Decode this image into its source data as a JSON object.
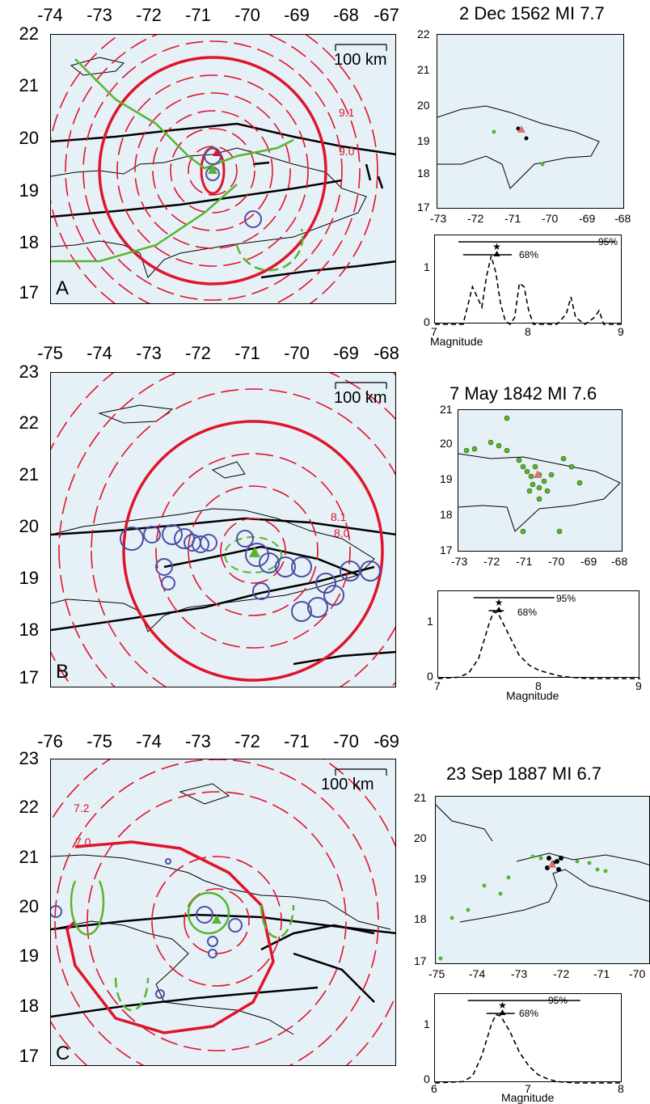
{
  "colors": {
    "sea": "#e6f1f7",
    "contour": "#e0142a",
    "green": "#58b52e",
    "blue": "#4d4fa3",
    "fault": "#000000"
  },
  "panels": [
    {
      "label": "A",
      "title": "2 Dec 1562 MI 7.7",
      "lon_ticks": [
        "-74",
        "-73",
        "-72",
        "-71",
        "-70",
        "-69",
        "-68",
        "-67"
      ],
      "lat_ticks": [
        "22",
        "21",
        "20",
        "19",
        "18",
        "17"
      ],
      "scale": "100 km",
      "contour_labels": [
        "9.1",
        "9.0"
      ],
      "inset": {
        "lon_ticks": [
          "-73",
          "-72",
          "-71",
          "-70",
          "-69",
          "-68"
        ],
        "lat_ticks": [
          "22",
          "21",
          "20",
          "19",
          "18",
          "17"
        ]
      },
      "chart": {
        "x_ticks": [
          "7",
          "8",
          "9"
        ],
        "y_ticks": [
          "1",
          "0"
        ],
        "xlabel": "Magnitude",
        "ci95": "95%",
        "ci68": "68%"
      }
    },
    {
      "label": "B",
      "title": "7 May 1842 MI 7.6",
      "lon_ticks": [
        "-75",
        "-74",
        "-73",
        "-72",
        "-71",
        "-70",
        "-69",
        "-68"
      ],
      "lat_ticks": [
        "23",
        "22",
        "21",
        "20",
        "19",
        "18",
        "17"
      ],
      "scale": "100 km",
      "contour_labels": [
        "8.1",
        "8.0"
      ],
      "inset": {
        "lon_ticks": [
          "-73",
          "-72",
          "-71",
          "-70",
          "-69",
          "-68"
        ],
        "lat_ticks": [
          "21",
          "20",
          "19",
          "18",
          "17"
        ]
      },
      "chart": {
        "x_ticks": [
          "7",
          "8",
          "9"
        ],
        "y_ticks": [
          "1",
          "0"
        ],
        "xlabel": "Magnitude",
        "ci95": "95%",
        "ci68": "68%"
      }
    },
    {
      "label": "C",
      "title": "23 Sep 1887 MI 6.7",
      "lon_ticks": [
        "-76",
        "-75",
        "-74",
        "-73",
        "-72",
        "-71",
        "-70",
        "-69"
      ],
      "lat_ticks": [
        "23",
        "22",
        "21",
        "20",
        "19",
        "18",
        "17"
      ],
      "scale": "100 km",
      "contour_labels": [
        "7.2",
        "7.0"
      ],
      "inset": {
        "lon_ticks": [
          "-75",
          "-74",
          "-73",
          "-72",
          "-71",
          "-70"
        ],
        "lat_ticks": [
          "21",
          "20",
          "19",
          "18",
          "17"
        ]
      },
      "chart": {
        "x_ticks": [
          "6",
          "7",
          "8"
        ],
        "y_ticks": [
          "1",
          "0"
        ],
        "xlabel": "Magnitude",
        "ci95": "95%",
        "ci68": "68%"
      }
    }
  ],
  "chart_data": [
    {
      "type": "line",
      "title": "2 Dec 1562 MI 7.7",
      "xlabel": "Magnitude",
      "xlim": [
        7,
        9
      ],
      "ylim": [
        0,
        1.3
      ],
      "x": [
        7.0,
        7.2,
        7.3,
        7.4,
        7.45,
        7.5,
        7.55,
        7.6,
        7.65,
        7.7,
        7.75,
        7.8,
        7.85,
        7.9,
        7.95,
        8.0,
        8.05,
        8.1,
        8.2,
        8.3,
        8.4,
        8.45,
        8.5,
        8.6,
        8.7,
        8.75,
        8.8,
        8.9,
        9.0
      ],
      "y": [
        0,
        0,
        0,
        0.55,
        0.4,
        0.25,
        0.7,
        1.0,
        0.75,
        0.3,
        0.05,
        0,
        0.1,
        0.6,
        0.55,
        0.2,
        0,
        0,
        0,
        0,
        0.15,
        0.4,
        0.1,
        0,
        0.1,
        0.2,
        0,
        0,
        0
      ],
      "star": 7.66,
      "ci95": [
        7.25,
        8.92
      ],
      "ci68": [
        7.3,
        7.82
      ]
    },
    {
      "type": "line",
      "title": "7 May 1842 MI 7.6",
      "xlabel": "Magnitude",
      "xlim": [
        7,
        9
      ],
      "ylim": [
        0,
        1.3
      ],
      "x": [
        7.0,
        7.2,
        7.3,
        7.4,
        7.5,
        7.55,
        7.6,
        7.7,
        7.8,
        7.9,
        8.0,
        8.1,
        8.2,
        8.3,
        8.5,
        9.0
      ],
      "y": [
        0,
        0.02,
        0.08,
        0.3,
        0.8,
        1.0,
        0.95,
        0.65,
        0.35,
        0.2,
        0.12,
        0.08,
        0.04,
        0.02,
        0,
        0
      ],
      "star": 7.6,
      "ci95": [
        7.35,
        8.15
      ],
      "ci68": [
        7.5,
        7.65
      ]
    },
    {
      "type": "line",
      "title": "23 Sep 1887 MI 6.7",
      "xlabel": "Magnitude",
      "xlim": [
        6,
        8
      ],
      "ylim": [
        0,
        1.3
      ],
      "x": [
        6.0,
        6.3,
        6.4,
        6.5,
        6.6,
        6.65,
        6.7,
        6.8,
        6.9,
        7.0,
        7.1,
        7.2,
        7.3,
        7.5,
        8.0
      ],
      "y": [
        0,
        0.02,
        0.1,
        0.4,
        0.85,
        1.0,
        0.98,
        0.75,
        0.45,
        0.25,
        0.12,
        0.06,
        0.02,
        0,
        0
      ],
      "star": 6.72,
      "ci95": [
        6.35,
        7.55
      ],
      "ci68": [
        6.55,
        6.85
      ]
    }
  ]
}
